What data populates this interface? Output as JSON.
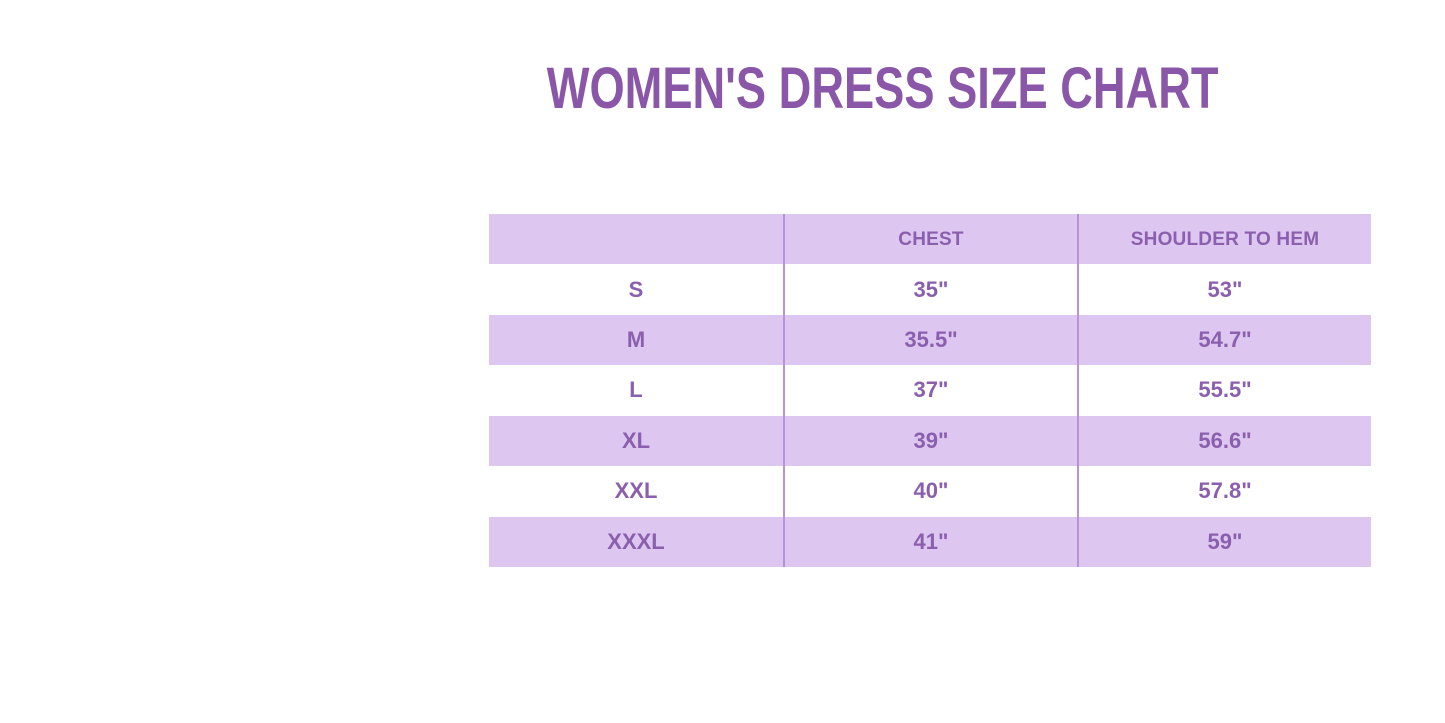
{
  "title": "WOMEN'S DRESS SIZE CHART",
  "colors": {
    "title_text": "#8a57a8",
    "table_text": "#8a5fae",
    "band_purple": "#ddc6f0",
    "row_white": "#ffffff",
    "column_divider": "#b793d8",
    "page_background": "#ffffff"
  },
  "table": {
    "columns": [
      "",
      "CHEST",
      "SHOULDER TO HEM"
    ],
    "rows": [
      {
        "size": "S",
        "chest": "35\"",
        "shoulder_to_hem": "53\""
      },
      {
        "size": "M",
        "chest": "35.5\"",
        "shoulder_to_hem": "54.7\""
      },
      {
        "size": "L",
        "chest": "37\"",
        "shoulder_to_hem": "55.5\""
      },
      {
        "size": "XL",
        "chest": "39\"",
        "shoulder_to_hem": "56.6\""
      },
      {
        "size": "XXL",
        "chest": "40\"",
        "shoulder_to_hem": "57.8\""
      },
      {
        "size": "XXXL",
        "chest": "41\"",
        "shoulder_to_hem": "59\""
      }
    ]
  },
  "chart_data": {
    "type": "table",
    "title": "WOMEN'S DRESS SIZE CHART",
    "columns": [
      "",
      "CHEST",
      "SHOULDER TO HEM"
    ],
    "rows": [
      [
        "S",
        "35\"",
        "53\""
      ],
      [
        "M",
        "35.5\"",
        "54.7\""
      ],
      [
        "L",
        "37\"",
        "55.5\""
      ],
      [
        "XL",
        "39\"",
        "56.6\""
      ],
      [
        "XXL",
        "40\"",
        "57.8\""
      ],
      [
        "XXXL",
        "41\"",
        "59\""
      ]
    ],
    "notes": "Alternating row shading: header, M, XL and XXXL rows are lavender; S, L and XXL rows are white. Two thin purple vertical dividers separate the three equal-width columns. No horizontal rules."
  }
}
